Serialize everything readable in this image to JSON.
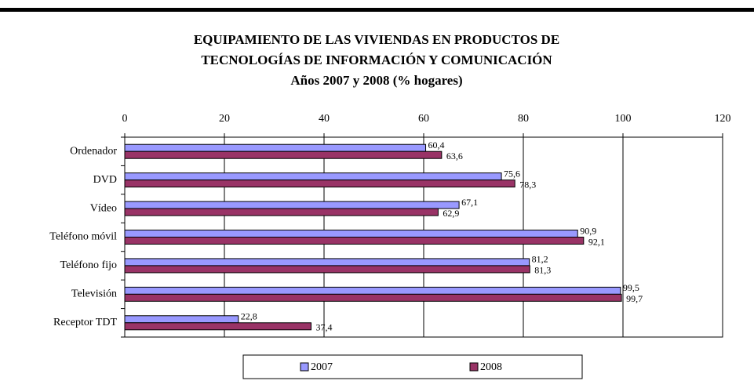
{
  "chart_data": {
    "type": "hbar",
    "title": [
      "EQUIPAMIENTO DE LAS VIVIENDAS EN PRODUCTOS DE",
      "TECNOLOGÍAS DE INFORMACIÓN Y COMUNICACIÓN"
    ],
    "subtitle": "Años 2007 y 2008 (% hogares)",
    "categories": [
      "Ordenador",
      "DVD",
      "Vídeo",
      "Teléfono móvil",
      "Teléfono fijo",
      "Televisión",
      "Receptor TDT"
    ],
    "series": [
      {
        "name": "2007",
        "color": "#9999ff",
        "values": [
          60.4,
          75.6,
          67.1,
          90.9,
          81.2,
          99.5,
          22.8
        ],
        "value_labels": [
          "60,4",
          "75,6",
          "67,1",
          "90,9",
          "81,2",
          "99,5",
          "22,8"
        ]
      },
      {
        "name": "2008",
        "color": "#993366",
        "values": [
          63.6,
          78.3,
          62.9,
          92.1,
          81.3,
          99.7,
          37.4
        ],
        "value_labels": [
          "63,6",
          "78,3",
          "62,9",
          "92,1",
          "81,3",
          "99,7",
          "37,4"
        ]
      }
    ],
    "xlim": [
      0,
      120
    ],
    "xticks": [
      0,
      20,
      40,
      60,
      80,
      100,
      120
    ],
    "grid": true,
    "legend": "bottom"
  }
}
